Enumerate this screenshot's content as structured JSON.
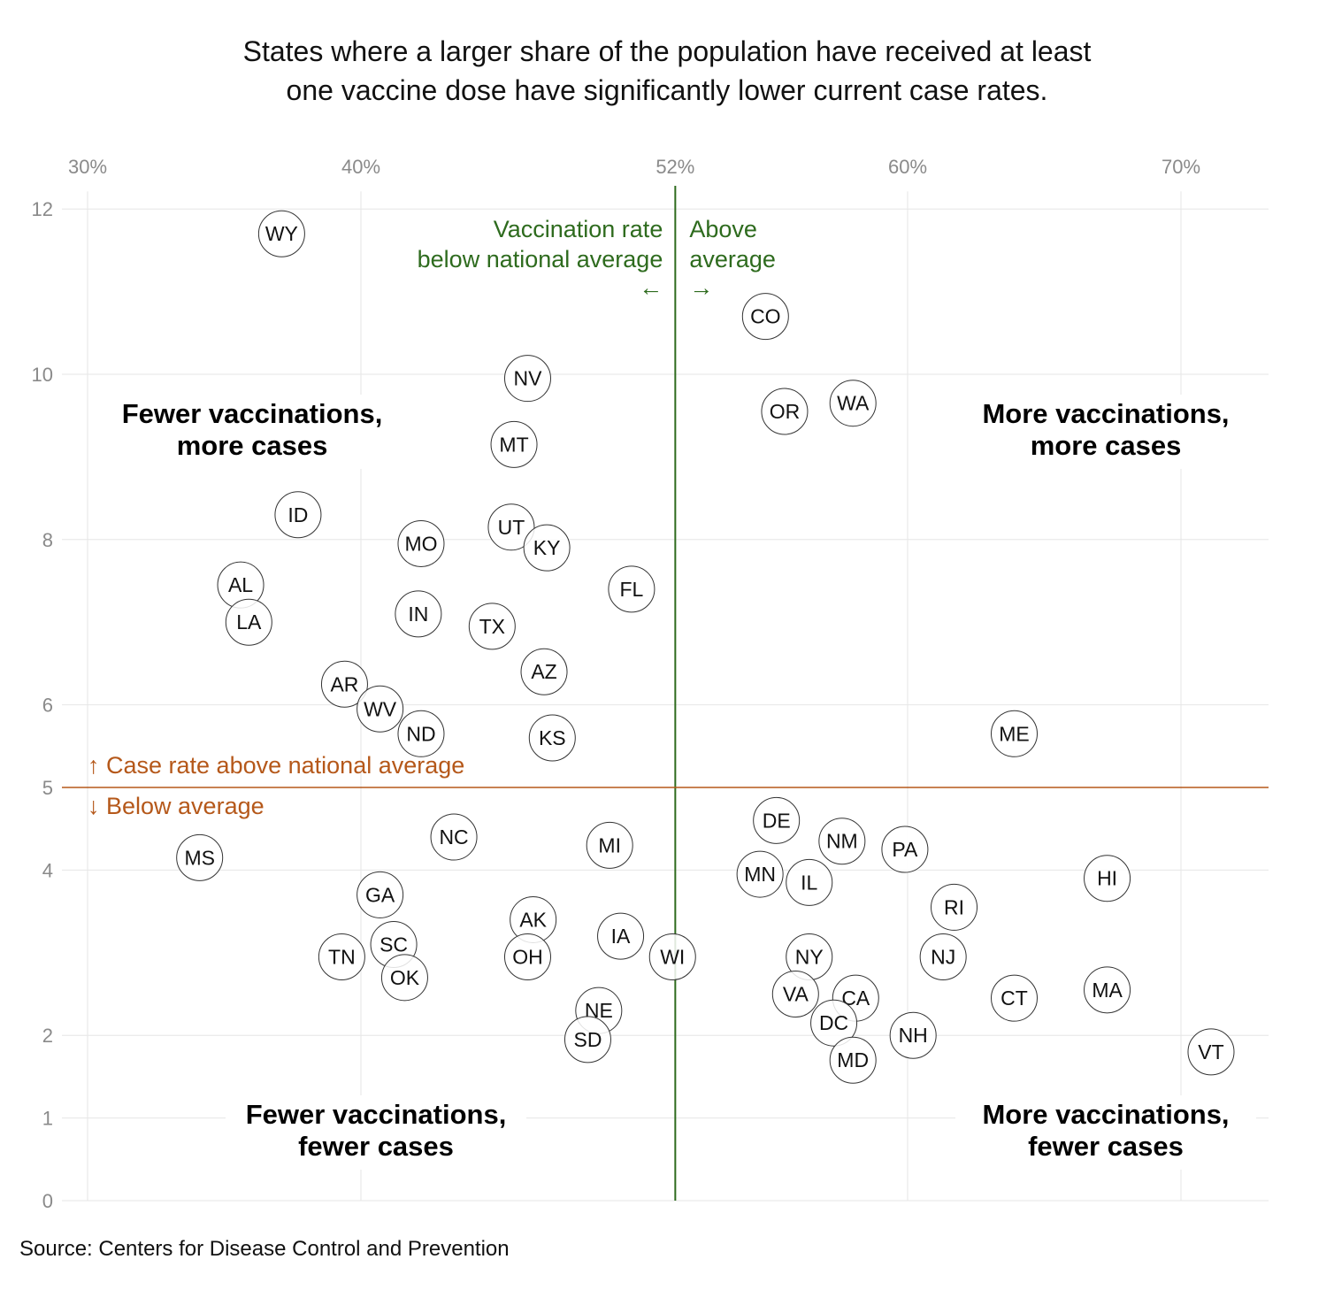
{
  "title": {
    "line1": "States where a larger share of the population have received at least",
    "line2": "one vaccine dose have significantly lower current case rates."
  },
  "source": "Source: Centers for Disease Control and Prevention",
  "colors": {
    "vaccination_line": "#2e6b1e",
    "case_line": "#b5581a",
    "grid": "#e6e6e6",
    "tick_text": "#8a8a8a",
    "point_stroke": "#333333"
  },
  "chart_data": {
    "type": "scatter",
    "x_ticks": [
      {
        "value": 30,
        "label": "30%"
      },
      {
        "value": 40,
        "label": "40%"
      },
      {
        "value": 51.5,
        "label": "52%"
      },
      {
        "value": 60,
        "label": "60%"
      },
      {
        "value": 70,
        "label": "70%"
      }
    ],
    "y_ticks": [
      {
        "value": 12,
        "label": "12"
      },
      {
        "value": 10,
        "label": "10"
      },
      {
        "value": 8,
        "label": "8"
      },
      {
        "value": 6,
        "label": "6"
      },
      {
        "value": 5,
        "label": "5"
      },
      {
        "value": 4,
        "label": "4"
      },
      {
        "value": 2,
        "label": "2"
      },
      {
        "value": 1,
        "label": "1"
      },
      {
        "value": 0,
        "label": "0"
      }
    ],
    "xlim": [
      29,
      73
    ],
    "ylim": [
      0,
      12
    ],
    "x_axis_position": "top",
    "grid": true,
    "national_average": {
      "x": 51.5,
      "y": 5
    },
    "quadrant_labels": [
      {
        "id": "top-left",
        "lines": [
          "Fewer vaccinations,",
          "more cases"
        ]
      },
      {
        "id": "top-right",
        "lines": [
          "More vaccinations,",
          "more cases"
        ]
      },
      {
        "id": "bottom-left",
        "lines": [
          "Fewer vaccinations,",
          "fewer cases"
        ]
      },
      {
        "id": "bottom-right",
        "lines": [
          "More vaccinations,",
          "fewer cases"
        ]
      }
    ],
    "annotations": {
      "below_vax": [
        "Vaccination rate",
        "below national average"
      ],
      "below_vax_arrow": "←",
      "above_vax": [
        "Above",
        "average"
      ],
      "above_vax_arrow": "→",
      "case_above": "↑ Case rate above national average",
      "case_below": "↓ Below average"
    },
    "points": [
      {
        "label": "WY",
        "x": 37.1,
        "y": 11.7
      },
      {
        "label": "CO",
        "x": 54.8,
        "y": 10.7
      },
      {
        "label": "NV",
        "x": 46.1,
        "y": 9.95
      },
      {
        "label": "WA",
        "x": 58.0,
        "y": 9.65
      },
      {
        "label": "OR",
        "x": 55.5,
        "y": 9.55
      },
      {
        "label": "MT",
        "x": 45.6,
        "y": 9.15
      },
      {
        "label": "ID",
        "x": 37.7,
        "y": 8.3
      },
      {
        "label": "UT",
        "x": 45.5,
        "y": 8.15
      },
      {
        "label": "MO",
        "x": 42.2,
        "y": 7.95
      },
      {
        "label": "KY",
        "x": 46.8,
        "y": 7.9
      },
      {
        "label": "AL",
        "x": 35.6,
        "y": 7.45
      },
      {
        "label": "FL",
        "x": 49.9,
        "y": 7.4
      },
      {
        "label": "IN",
        "x": 42.1,
        "y": 7.1
      },
      {
        "label": "LA",
        "x": 35.9,
        "y": 7.0
      },
      {
        "label": "TX",
        "x": 44.8,
        "y": 6.95
      },
      {
        "label": "AZ",
        "x": 46.7,
        "y": 6.4
      },
      {
        "label": "AR",
        "x": 39.4,
        "y": 6.25
      },
      {
        "label": "WV",
        "x": 40.7,
        "y": 5.95
      },
      {
        "label": "ND",
        "x": 42.2,
        "y": 5.65
      },
      {
        "label": "KS",
        "x": 47.0,
        "y": 5.6
      },
      {
        "label": "ME",
        "x": 63.9,
        "y": 5.65
      },
      {
        "label": "DE",
        "x": 55.2,
        "y": 4.6
      },
      {
        "label": "NM",
        "x": 57.6,
        "y": 4.35
      },
      {
        "label": "NC",
        "x": 43.4,
        "y": 4.4
      },
      {
        "label": "MI",
        "x": 49.1,
        "y": 4.3
      },
      {
        "label": "PA",
        "x": 59.9,
        "y": 4.25
      },
      {
        "label": "MS",
        "x": 34.1,
        "y": 4.15
      },
      {
        "label": "MN",
        "x": 54.6,
        "y": 3.95
      },
      {
        "label": "HI",
        "x": 67.3,
        "y": 3.9
      },
      {
        "label": "IL",
        "x": 56.4,
        "y": 3.85
      },
      {
        "label": "GA",
        "x": 40.7,
        "y": 3.7
      },
      {
        "label": "RI",
        "x": 61.7,
        "y": 3.55
      },
      {
        "label": "AK",
        "x": 46.3,
        "y": 3.4
      },
      {
        "label": "IA",
        "x": 49.5,
        "y": 3.2
      },
      {
        "label": "SC",
        "x": 41.2,
        "y": 3.1
      },
      {
        "label": "TN",
        "x": 39.3,
        "y": 2.95
      },
      {
        "label": "OH",
        "x": 46.1,
        "y": 2.95
      },
      {
        "label": "WI",
        "x": 51.4,
        "y": 2.95
      },
      {
        "label": "NY",
        "x": 56.4,
        "y": 2.95
      },
      {
        "label": "NJ",
        "x": 61.3,
        "y": 2.95
      },
      {
        "label": "OK",
        "x": 41.6,
        "y": 2.7
      },
      {
        "label": "VA",
        "x": 55.9,
        "y": 2.5
      },
      {
        "label": "CA",
        "x": 58.1,
        "y": 2.45
      },
      {
        "label": "CT",
        "x": 63.9,
        "y": 2.45
      },
      {
        "label": "MA",
        "x": 67.3,
        "y": 2.55
      },
      {
        "label": "NE",
        "x": 48.7,
        "y": 2.3
      },
      {
        "label": "DC",
        "x": 57.3,
        "y": 2.15
      },
      {
        "label": "NH",
        "x": 60.2,
        "y": 2.0
      },
      {
        "label": "SD",
        "x": 48.3,
        "y": 1.95
      },
      {
        "label": "VT",
        "x": 71.1,
        "y": 1.8
      },
      {
        "label": "MD",
        "x": 58.0,
        "y": 1.7
      }
    ]
  }
}
